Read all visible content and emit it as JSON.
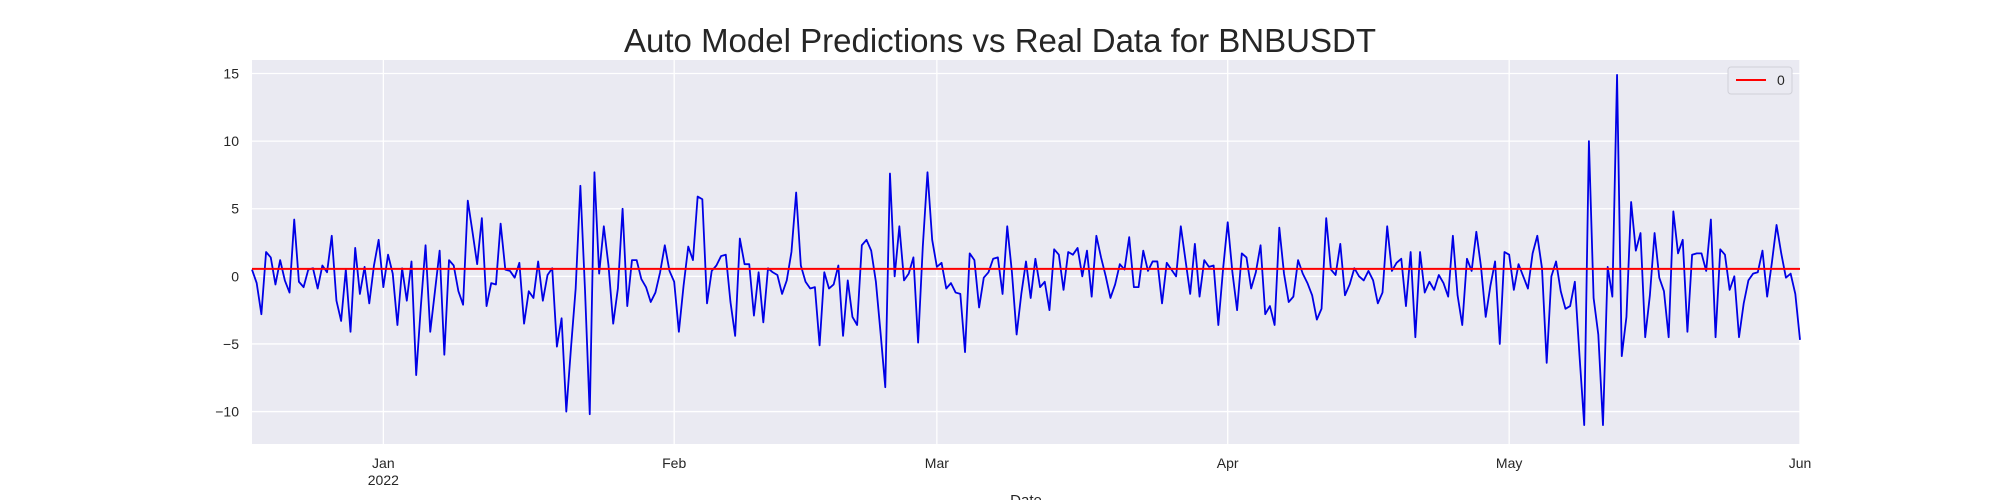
{
  "chart_data": {
    "type": "line",
    "title": "Auto Model Predictions vs Real Data for BNBUSDT",
    "xlabel": "Date",
    "ylabel": "",
    "x_start": "2021-12-18",
    "x_end": "2022-06-01",
    "xlim": [
      "2021-12-18",
      "2022-06-01"
    ],
    "ylim": [
      -12.4,
      16.0
    ],
    "grid": true,
    "legend_position": "top-right",
    "x_ticks": [
      {
        "date": "2022-01-01",
        "label": "Jan",
        "sublabel": "2022"
      },
      {
        "date": "2022-02-01",
        "label": "Feb",
        "sublabel": ""
      },
      {
        "date": "2022-03-01",
        "label": "Mar",
        "sublabel": ""
      },
      {
        "date": "2022-04-01",
        "label": "Apr",
        "sublabel": ""
      },
      {
        "date": "2022-05-01",
        "label": "May",
        "sublabel": ""
      },
      {
        "date": "2022-06-01",
        "label": "Jun",
        "sublabel": ""
      }
    ],
    "y_ticks": [
      {
        "value": 15,
        "label": "15"
      },
      {
        "value": 10,
        "label": "10"
      },
      {
        "value": 5,
        "label": "5"
      },
      {
        "value": 0,
        "label": "0"
      },
      {
        "value": -5,
        "label": "−5"
      },
      {
        "value": -10,
        "label": "−10"
      }
    ],
    "series": [
      {
        "name": "0",
        "color": "#ff0000",
        "show_in_legend": true,
        "values": [
          0.55,
          0.55
        ]
      },
      {
        "name": "",
        "color": "#0000e6",
        "show_in_legend": false,
        "values": [
          0.5,
          -0.5,
          -2.8,
          1.8,
          1.4,
          -0.6,
          1.2,
          -0.3,
          -1.2,
          4.2,
          -0.4,
          -0.8,
          0.5,
          0.6,
          -0.9,
          0.8,
          0.3,
          3.0,
          -1.8,
          -3.3,
          0.5,
          -4.1,
          2.1,
          -1.3,
          0.7,
          -2.0,
          0.8,
          2.7,
          -0.8,
          1.6,
          0.2,
          -3.6,
          0.6,
          -1.8,
          1.1,
          -7.3,
          -2.2,
          2.3,
          -4.1,
          -1.1,
          1.9,
          -5.8,
          1.2,
          0.8,
          -1.1,
          -2.1,
          5.6,
          3.3,
          0.9,
          4.3,
          -2.2,
          -0.5,
          -0.6,
          3.9,
          0.5,
          0.4,
          -0.1,
          1.0,
          -3.5,
          -1.1,
          -1.6,
          1.1,
          -1.8,
          0.1,
          0.6,
          -5.2,
          -3.1,
          -10.0,
          -5.3,
          -0.9,
          6.7,
          -1.1,
          -10.2,
          7.7,
          0.2,
          3.7,
          0.8,
          -3.5,
          -0.9,
          5.0,
          -2.2,
          1.2,
          1.2,
          -0.2,
          -0.8,
          -1.9,
          -1.2,
          0.3,
          2.3,
          0.4,
          -0.4,
          -4.1,
          -0.7,
          2.2,
          1.2,
          5.9,
          5.7,
          -2.0,
          0.4,
          0.8,
          1.5,
          1.6,
          -1.9,
          -4.4,
          2.8,
          0.9,
          0.9,
          -2.9,
          0.3,
          -3.4,
          0.6,
          0.3,
          0.1,
          -1.3,
          -0.3,
          1.8,
          6.2,
          0.8,
          -0.4,
          -0.9,
          -0.8,
          -5.1,
          0.3,
          -0.9,
          -0.6,
          0.8,
          -4.4,
          -0.3,
          -3.0,
          -3.6,
          2.3,
          2.7,
          1.9,
          -0.4,
          -4.2,
          -8.2,
          7.6,
          0.0,
          3.7,
          -0.3,
          0.2,
          1.4,
          -4.9,
          2.2,
          7.7,
          2.7,
          0.7,
          1.0,
          -0.9,
          -0.5,
          -1.2,
          -1.3,
          -5.6,
          1.7,
          1.2,
          -2.3,
          -0.1,
          0.3,
          1.3,
          1.4,
          -1.3,
          3.7,
          0.3,
          -4.3,
          -1.3,
          1.1,
          -1.6,
          1.3,
          -0.8,
          -0.4,
          -2.5,
          2.0,
          1.6,
          -1.0,
          1.8,
          1.6,
          2.1,
          0.0,
          1.9,
          -1.5,
          3.0,
          1.4,
          0.0,
          -1.6,
          -0.6,
          0.9,
          0.5,
          2.9,
          -0.8,
          -0.8,
          1.9,
          0.4,
          1.1,
          1.1,
          -2.0,
          1.0,
          0.5,
          0.0,
          3.7,
          1.2,
          -1.3,
          2.4,
          -1.5,
          1.2,
          0.7,
          0.8,
          -3.6,
          0.5,
          4.0,
          0.3,
          -2.5,
          1.7,
          1.4,
          -0.9,
          0.3,
          2.3,
          -2.8,
          -2.2,
          -3.6,
          3.6,
          0.2,
          -1.9,
          -1.5,
          1.2,
          0.2,
          -0.5,
          -1.4,
          -3.2,
          -2.4,
          4.3,
          0.5,
          0.1,
          2.4,
          -1.4,
          -0.6,
          0.6,
          0.0,
          -0.3,
          0.4,
          -0.3,
          -2.0,
          -1.2,
          3.7,
          0.4,
          1.0,
          1.3,
          -2.2,
          1.8,
          -4.5,
          1.8,
          -1.2,
          -0.4,
          -1.0,
          0.1,
          -0.5,
          -1.5,
          3.0,
          -1.4,
          -3.6,
          1.3,
          0.4,
          3.3,
          0.7,
          -3.0,
          -0.7,
          1.1,
          -5.0,
          1.8,
          1.6,
          -1.0,
          0.9,
          0.0,
          -0.9,
          1.7,
          3.0,
          0.6,
          -6.4,
          0.0,
          1.1,
          -1.1,
          -2.4,
          -2.2,
          -0.4,
          -5.9,
          -11.0,
          10.0,
          -1.6,
          -4.3,
          -11.0,
          0.7,
          -1.5,
          14.9,
          -5.9,
          -3.0,
          5.5,
          1.9,
          3.2,
          -4.5,
          -1.4,
          3.2,
          -0.1,
          -1.1,
          -4.5,
          4.8,
          1.7,
          2.7,
          -4.1,
          1.6,
          1.7,
          1.7,
          0.4,
          4.2,
          -4.5,
          2.0,
          1.6,
          -1.0,
          0.0,
          -4.5,
          -2.0,
          -0.3,
          0.2,
          0.3,
          1.9,
          -1.5,
          1.0,
          3.8,
          1.7,
          -0.1,
          0.2,
          -1.3,
          -4.7
        ]
      }
    ]
  }
}
